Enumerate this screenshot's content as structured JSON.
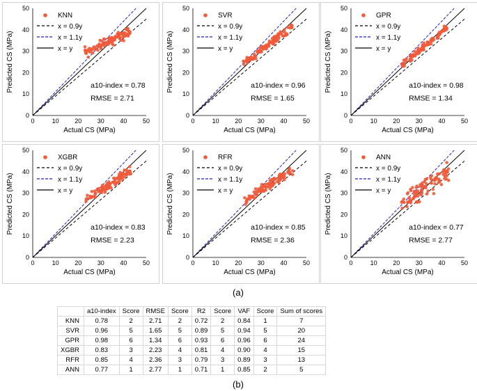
{
  "colors": {
    "points": "#f15a3a",
    "ref_09": "#000000",
    "ref_11": "#1f1fd0",
    "ref_xy": "#000000",
    "frame": "#d0d0d0"
  },
  "figure_label": "(a)",
  "table_label": "(b)",
  "chart_data": [
    {
      "type": "scatter",
      "model": "KNN",
      "xlabel": "Actual CS (MPa)",
      "ylabel": "Predicted CS (MPa)",
      "xlim": [
        0,
        50
      ],
      "ylim": [
        0,
        50
      ],
      "xticks": [
        0,
        10,
        20,
        30,
        40,
        50
      ],
      "yticks": [
        0,
        10,
        20,
        30,
        40,
        50
      ],
      "legend": [
        "KNN",
        "x = 0.9y",
        "x = 1.1y",
        "x = y"
      ],
      "a10_text": "a10-index = 0.78",
      "rmse_text": "RMSE = 2.71",
      "cloud": {
        "x_range": [
          22,
          43
        ],
        "slope": 0.48,
        "intercept": 18.5,
        "spread": 1.6,
        "n": 95,
        "seed": 11
      }
    },
    {
      "type": "scatter",
      "model": "SVR",
      "xlabel": "Actual CS (MPa)",
      "ylabel": "Predicted CS (MPa)",
      "xlim": [
        0,
        50
      ],
      "ylim": [
        0,
        50
      ],
      "xticks": [
        0,
        10,
        20,
        30,
        40,
        50
      ],
      "yticks": [
        0,
        10,
        20,
        30,
        40,
        50
      ],
      "legend": [
        "SVR",
        "x = 0.9y",
        "x = 1.1y",
        "x = y"
      ],
      "a10_text": "a10-index = 0.96",
      "rmse_text": "RMSE = 1.65",
      "cloud": {
        "x_range": [
          22,
          44
        ],
        "slope": 0.8,
        "intercept": 6.5,
        "spread": 1.3,
        "n": 95,
        "seed": 22
      }
    },
    {
      "type": "scatter",
      "model": "GPR",
      "xlabel": "Actual CS (MPa)",
      "ylabel": "Predicted CS (MPa)",
      "xlim": [
        0,
        50
      ],
      "ylim": [
        0,
        50
      ],
      "xticks": [
        0,
        10,
        20,
        30,
        40,
        50
      ],
      "yticks": [
        0,
        10,
        20,
        30,
        40,
        50
      ],
      "legend": [
        "GPR",
        "x = 0.9y",
        "x = 1.1y",
        "x = y"
      ],
      "a10_text": "a10-index = 0.98",
      "rmse_text": "RMSE = 1.34",
      "cloud": {
        "x_range": [
          22,
          43
        ],
        "slope": 0.88,
        "intercept": 3.8,
        "spread": 1.2,
        "n": 95,
        "seed": 33
      }
    },
    {
      "type": "scatter",
      "model": "XGBR",
      "xlabel": "Actual CS (MPa)",
      "ylabel": "Predicted CS (MPa)",
      "xlim": [
        0,
        50
      ],
      "ylim": [
        0,
        50
      ],
      "xticks": [
        0,
        10,
        20,
        30,
        40,
        50
      ],
      "yticks": [
        0,
        10,
        20,
        30,
        40,
        50
      ],
      "legend": [
        "XGBR",
        "x = 0.9y",
        "x = 1.1y",
        "x = y"
      ],
      "a10_text": "a10-index = 0.83",
      "rmse_text": "RMSE = 2.23",
      "cloud": {
        "x_range": [
          22,
          44
        ],
        "slope": 0.68,
        "intercept": 11,
        "spread": 1.5,
        "n": 95,
        "seed": 44
      }
    },
    {
      "type": "scatter",
      "model": "RFR",
      "xlabel": "Actual CS (MPa)",
      "ylabel": "Predicted CS (MPa)",
      "xlim": [
        0,
        50
      ],
      "ylim": [
        0,
        50
      ],
      "xticks": [
        0,
        10,
        20,
        30,
        40,
        50
      ],
      "yticks": [
        0,
        10,
        20,
        30,
        40,
        50
      ],
      "legend": [
        "RFR",
        "x = 0.9y",
        "x = 1.1y",
        "x = y"
      ],
      "a10_text": "a10-index = 0.85",
      "rmse_text": "RMSE = 2.36",
      "cloud": {
        "x_range": [
          22,
          44
        ],
        "slope": 0.68,
        "intercept": 11,
        "spread": 1.5,
        "n": 95,
        "seed": 55
      }
    },
    {
      "type": "scatter",
      "model": "ANN",
      "xlabel": "Actual CS (MPa)",
      "ylabel": "Predicted CS (MPa)",
      "xlim": [
        0,
        50
      ],
      "ylim": [
        0,
        50
      ],
      "xticks": [
        0,
        10,
        20,
        30,
        40,
        50
      ],
      "yticks": [
        0,
        10,
        20,
        30,
        40,
        50
      ],
      "legend": [
        "ANN",
        "x = 0.9y",
        "x = 1.1y",
        "x = y"
      ],
      "a10_text": "a10-index = 0.77",
      "rmse_text": "RMSE = 2.77",
      "cloud": {
        "x_range": [
          22,
          43
        ],
        "slope": 0.7,
        "intercept": 10,
        "spread": 3.0,
        "n": 95,
        "seed": 66
      }
    }
  ],
  "table": {
    "headers": [
      "",
      "a10-index",
      "Score",
      "RMSE",
      "Score",
      "R2",
      "Score",
      "VAF",
      "Score",
      "Sum of scores"
    ],
    "rows": [
      [
        "KNN",
        "0.78",
        "2",
        "2.71",
        "2",
        "0.72",
        "2",
        "0.84",
        "1",
        "7"
      ],
      [
        "SVR",
        "0.96",
        "5",
        "1.65",
        "5",
        "0.89",
        "5",
        "0.94",
        "5",
        "20"
      ],
      [
        "GPR",
        "0.98",
        "6",
        "1.34",
        "6",
        "0.93",
        "6",
        "0.96",
        "6",
        "24"
      ],
      [
        "XGBR",
        "0.83",
        "3",
        "2.23",
        "4",
        "0.81",
        "4",
        "0.90",
        "4",
        "15"
      ],
      [
        "RFR",
        "0.85",
        "4",
        "2.36",
        "3",
        "0.79",
        "3",
        "0.89",
        "3",
        "13"
      ],
      [
        "ANN",
        "0.77",
        "1",
        "2.77",
        "1",
        "0.71",
        "1",
        "0.85",
        "2",
        "5"
      ]
    ]
  }
}
